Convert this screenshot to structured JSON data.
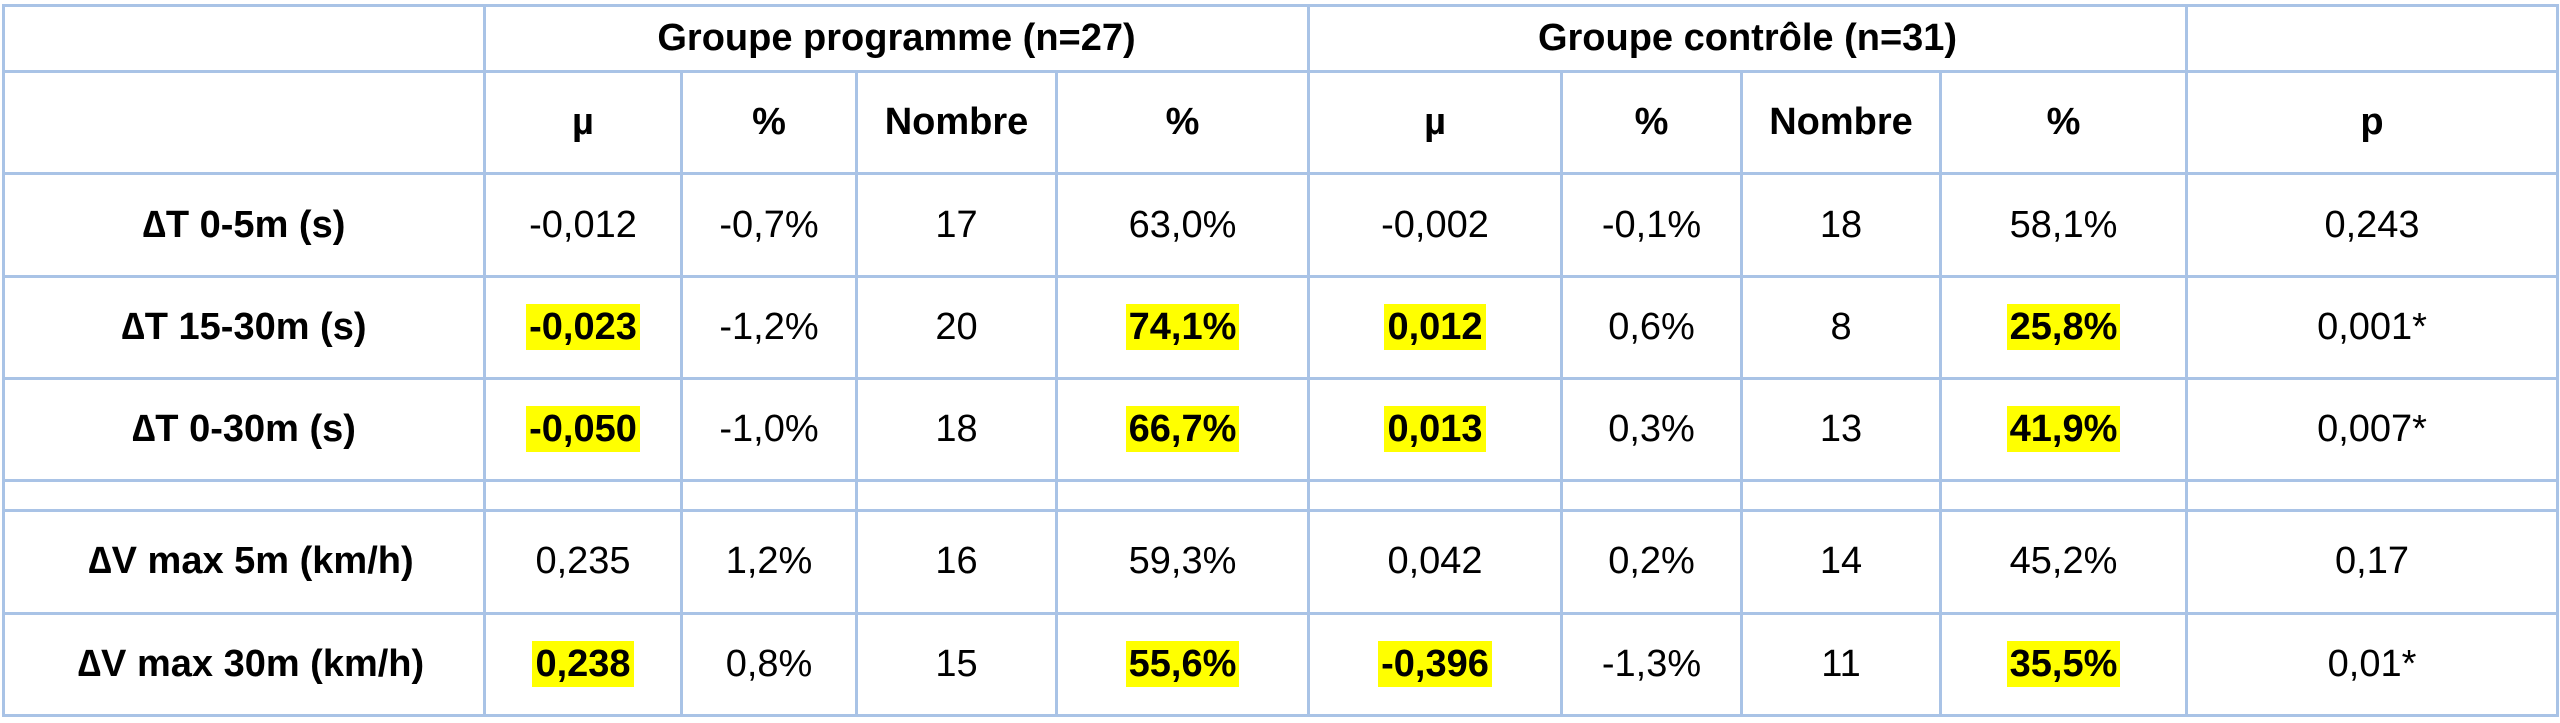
{
  "header": {
    "group1": "Groupe programme (n=27)",
    "group2": "Groupe contrôle (n=31)",
    "columns": [
      "µ",
      "%",
      "Nombre",
      "%",
      "µ",
      "%",
      "Nombre",
      "%",
      "p"
    ]
  },
  "rows": [
    {
      "label": "∆T 0-5m (s)",
      "cells": [
        "-0,012",
        "-0,7%",
        "17",
        "63,0%",
        "-0,002",
        "-0,1%",
        "18",
        "58,1%",
        "0,243"
      ]
    },
    {
      "label": "∆T 15-30m (s)",
      "cells": [
        "-0,023",
        "-1,2%",
        "20",
        "74,1%",
        "0,012",
        "0,6%",
        "8",
        "25,8%",
        "0,001*"
      ]
    },
    {
      "label": "∆T 0-30m (s)",
      "cells": [
        "-0,050",
        "-1,0%",
        "18",
        "66,7%",
        "0,013",
        "0,3%",
        "13",
        "41,9%",
        "0,007*"
      ]
    },
    {
      "label": "∆V max 5m (km/h)",
      "cells": [
        "0,235",
        "1,2%",
        "16",
        "59,3%",
        "0,042",
        "0,2%",
        "14",
        "45,2%",
        "0,17"
      ]
    },
    {
      "label": "∆V max 30m (km/h)",
      "cells": [
        "0,238",
        "0,8%",
        "15",
        "55,6%",
        "-0,396",
        "-1,3%",
        "11",
        "35,5%",
        "0,01*"
      ]
    }
  ],
  "highlight_color": "#ffff00",
  "border_color": "#a9c3e6"
}
